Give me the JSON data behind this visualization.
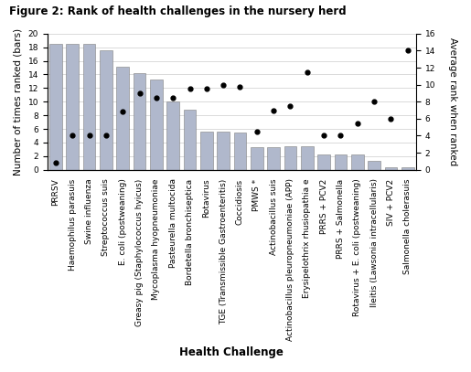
{
  "title": "Figure 2: Rank of health challenges in the nursery herd",
  "xlabel": "Health Challenge",
  "ylabel_left": "Number of times ranked (bars)",
  "ylabel_right": "Average rank when ranked",
  "categories": [
    "PRRSV",
    "Haemophilus parasuis",
    "Swine influenza",
    "Streptococcus suis",
    "E. coli (postweaning)",
    "Greasy pig (Staphylococcus hyicus)",
    "Mycoplasma hyopneumoniae",
    "Pasteurella multocida",
    "Bordetella bronchiseptica",
    "Rotavirus",
    "TGE (Transmissible Gastroenteritis)",
    "Coccidiosis",
    "PMWS *",
    "Actinobacillus suis",
    "Actinobacillus pleuropneumoniae (APP)",
    "Erysipelothrix rhusiopathia e",
    "PRRS + PCV2",
    "PRRS + Salmonella",
    "Rotavirus + E. coli (postweaning)",
    "Ileitis (Lawsonia intracellularis)",
    "SIV + PCV2",
    "Salmonella cholerasuis"
  ],
  "bar_values": [
    18.5,
    18.5,
    18.5,
    17.5,
    15.2,
    14.2,
    13.2,
    10.0,
    8.8,
    5.6,
    5.6,
    5.5,
    3.3,
    3.3,
    3.4,
    3.4,
    2.3,
    2.3,
    2.3,
    1.3,
    0.3,
    0.3
  ],
  "dot_values": [
    0.8,
    4.0,
    4.0,
    4.0,
    6.8,
    9.0,
    8.5,
    8.5,
    9.5,
    9.5,
    10.0,
    9.8,
    4.5,
    7.0,
    7.5,
    11.5,
    4.0,
    4.0,
    5.5,
    8.0,
    6.0,
    14.0
  ],
  "bar_color": "#b0b8cc",
  "bar_edge_color": "#808080",
  "dot_color": "#000000",
  "ylim_left": [
    0,
    20
  ],
  "ylim_right": [
    0.0,
    16.0
  ],
  "yticks_left": [
    0,
    2,
    4,
    6,
    8,
    10,
    12,
    14,
    16,
    18,
    20
  ],
  "yticks_right": [
    0.0,
    2.0,
    4.0,
    6.0,
    8.0,
    10.0,
    12.0,
    14.0,
    16.0
  ],
  "background_color": "#ffffff",
  "title_fontsize": 8.5,
  "axis_label_fontsize": 7.5,
  "tick_fontsize": 6.5,
  "xlabel_fontsize": 8.5
}
